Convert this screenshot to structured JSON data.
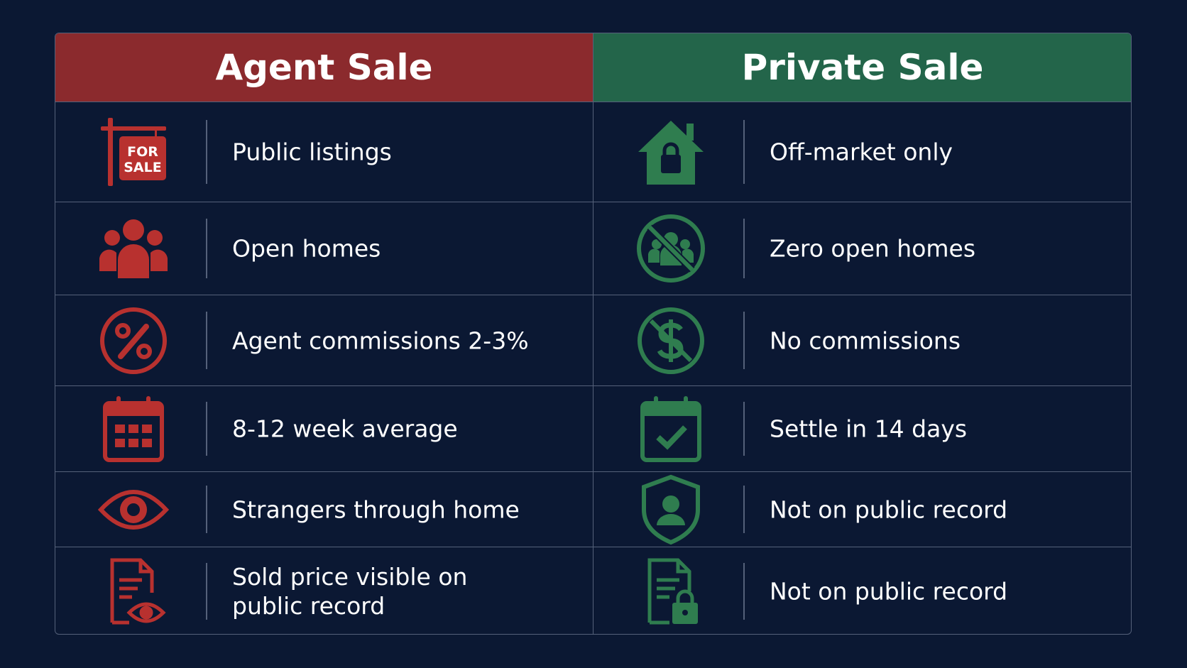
{
  "header": {
    "columns": [
      "Agent Sale",
      "Private Sale"
    ]
  },
  "icons": {
    "for_sale_sign": [
      "FOR",
      "SALE"
    ]
  },
  "rows": [
    {
      "agent": [
        "Public listings"
      ],
      "private": [
        "Off-market only"
      ]
    },
    {
      "agent": [
        "Open homes"
      ],
      "private": [
        "Zero open homes"
      ]
    },
    {
      "agent": [
        "Agent commissions 2-3%"
      ],
      "private": [
        "No commissions"
      ]
    },
    {
      "agent": [
        "8-12 week average"
      ],
      "private": [
        "Settle in 14 days"
      ]
    },
    {
      "agent": [
        "Strangers through home"
      ],
      "private": [
        "Not on public record"
      ]
    },
    {
      "agent": [
        "Sold price visible on",
        "public record"
      ],
      "private": [
        "Not on public record"
      ]
    }
  ]
}
